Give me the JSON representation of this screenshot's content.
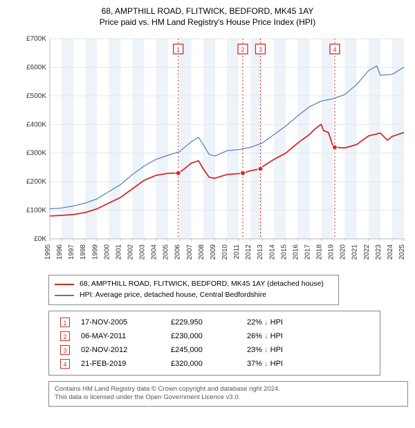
{
  "title": {
    "line1": "68, AMPTHILL ROAD, FLITWICK, BEDFORD, MK45 1AY",
    "line2": "Price paid vs. HM Land Registry's House Price Index (HPI)"
  },
  "chart": {
    "type": "line",
    "background_color": "#ffffff",
    "grid_color": "#e6e6e6",
    "band_color": "#eef3fa",
    "axis_color": "#bbbbbb",
    "tick_fontsize": 10,
    "x": {
      "min": 1995,
      "max": 2025,
      "tick_step": 1,
      "rotate_labels": true
    },
    "y": {
      "min": 0,
      "max": 700000,
      "tick_step": 100000,
      "prefix": "£",
      "format_k": true
    },
    "series": [
      {
        "name": "property",
        "label": "68, AMPTHILL ROAD, FLITWICK, BEDFORD, MK45 1AY (detached house)",
        "color": "#d62728",
        "line_width": 1.8,
        "points": [
          [
            1995,
            80000
          ],
          [
            1996,
            82000
          ],
          [
            1997,
            85000
          ],
          [
            1998,
            92000
          ],
          [
            1999,
            105000
          ],
          [
            2000,
            125000
          ],
          [
            2001,
            145000
          ],
          [
            2002,
            175000
          ],
          [
            2003,
            205000
          ],
          [
            2004,
            222000
          ],
          [
            2005,
            229000
          ],
          [
            2005.88,
            229950
          ],
          [
            2006,
            232000
          ],
          [
            2007,
            265000
          ],
          [
            2007.6,
            273000
          ],
          [
            2008,
            245000
          ],
          [
            2008.5,
            215000
          ],
          [
            2009,
            212000
          ],
          [
            2010,
            225000
          ],
          [
            2011,
            228000
          ],
          [
            2011.35,
            230000
          ],
          [
            2012,
            238000
          ],
          [
            2012.84,
            245000
          ],
          [
            2013,
            252000
          ],
          [
            2014,
            278000
          ],
          [
            2015,
            300000
          ],
          [
            2016,
            335000
          ],
          [
            2017,
            365000
          ],
          [
            2017.4,
            382000
          ],
          [
            2017.8,
            395000
          ],
          [
            2018,
            400000
          ],
          [
            2018.2,
            378000
          ],
          [
            2018.6,
            372000
          ],
          [
            2019,
            323000
          ],
          [
            2019.14,
            320000
          ],
          [
            2020,
            318000
          ],
          [
            2021,
            330000
          ],
          [
            2022,
            360000
          ],
          [
            2023,
            370000
          ],
          [
            2023.6,
            345000
          ],
          [
            2024,
            358000
          ],
          [
            2025,
            372000
          ]
        ],
        "sale_markers": [
          {
            "x": 2005.88,
            "y": 229950
          },
          {
            "x": 2011.35,
            "y": 230000
          },
          {
            "x": 2012.84,
            "y": 245000
          },
          {
            "x": 2019.14,
            "y": 320000
          }
        ]
      },
      {
        "name": "hpi",
        "label": "HPI: Average price, detached house, Central Bedfordshire",
        "color": "#4a7ebb",
        "line_width": 1.2,
        "points": [
          [
            1995,
            105000
          ],
          [
            1996,
            108000
          ],
          [
            1997,
            115000
          ],
          [
            1998,
            125000
          ],
          [
            1999,
            140000
          ],
          [
            2000,
            165000
          ],
          [
            2001,
            190000
          ],
          [
            2002,
            225000
          ],
          [
            2003,
            255000
          ],
          [
            2004,
            278000
          ],
          [
            2005,
            292000
          ],
          [
            2006,
            305000
          ],
          [
            2007,
            340000
          ],
          [
            2007.6,
            355000
          ],
          [
            2008,
            330000
          ],
          [
            2008.5,
            295000
          ],
          [
            2009,
            290000
          ],
          [
            2010,
            308000
          ],
          [
            2011,
            312000
          ],
          [
            2012,
            320000
          ],
          [
            2013,
            335000
          ],
          [
            2014,
            365000
          ],
          [
            2015,
            395000
          ],
          [
            2016,
            430000
          ],
          [
            2017,
            462000
          ],
          [
            2018,
            482000
          ],
          [
            2019,
            490000
          ],
          [
            2020,
            505000
          ],
          [
            2021,
            540000
          ],
          [
            2022,
            588000
          ],
          [
            2022.7,
            605000
          ],
          [
            2023,
            572000
          ],
          [
            2024,
            575000
          ],
          [
            2025,
            600000
          ]
        ]
      }
    ],
    "vlines": [
      {
        "x": 2005.88,
        "label": "1"
      },
      {
        "x": 2011.35,
        "label": "2"
      },
      {
        "x": 2012.84,
        "label": "3"
      },
      {
        "x": 2019.14,
        "label": "4"
      }
    ],
    "vline_color": "#d62728",
    "vline_dash": "2,3",
    "vline_box_fontsize": 9
  },
  "legend": {
    "items": [
      {
        "color": "#d62728",
        "label": "68, AMPTHILL ROAD, FLITWICK, BEDFORD, MK45 1AY (detached house)"
      },
      {
        "color": "#4a7ebb",
        "label": "HPI: Average price, detached house, Central Bedfordshire"
      }
    ]
  },
  "sales": {
    "hpi_suffix": "HPI",
    "rows": [
      {
        "n": "1",
        "date": "17-NOV-2005",
        "price": "£229,950",
        "pct": "22%",
        "dir": "↓"
      },
      {
        "n": "2",
        "date": "06-MAY-2011",
        "price": "£230,000",
        "pct": "26%",
        "dir": "↓"
      },
      {
        "n": "3",
        "date": "02-NOV-2012",
        "price": "£245,000",
        "pct": "23%",
        "dir": "↓"
      },
      {
        "n": "4",
        "date": "21-FEB-2019",
        "price": "£320,000",
        "pct": "37%",
        "dir": "↓"
      }
    ]
  },
  "attribution": {
    "line1": "Contains HM Land Registry data © Crown copyright and database right 2024.",
    "line2": "This data is licensed under the Open Government Licence v3.0."
  }
}
